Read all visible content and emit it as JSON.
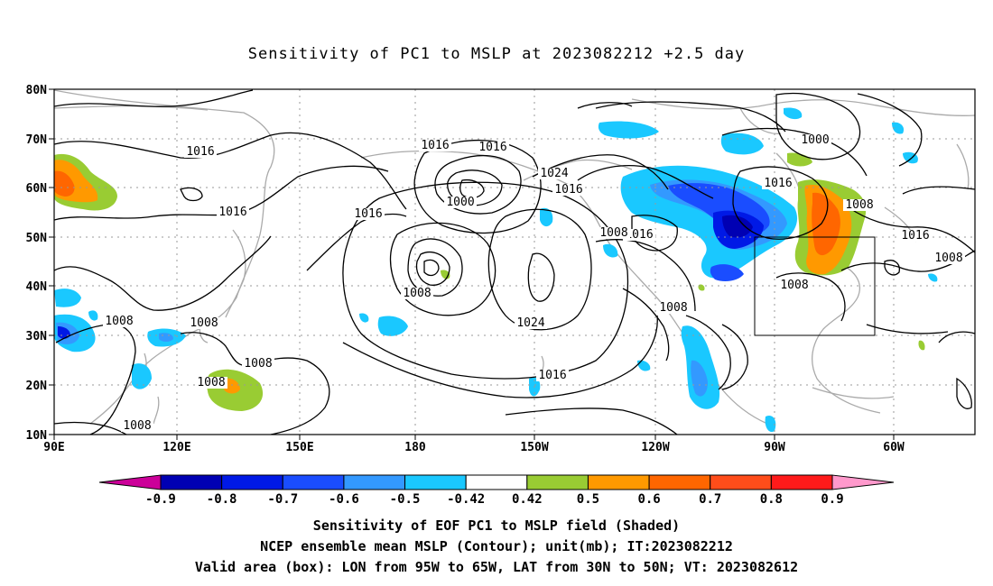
{
  "title": "Sensitivity of PC1 to MSLP at 2023082212 +2.5 day",
  "map": {
    "lat_ticks": [
      "80N",
      "70N",
      "60N",
      "50N",
      "40N",
      "30N",
      "20N",
      "10N"
    ],
    "lon_ticks": [
      "90E",
      "120E",
      "150E",
      "180",
      "150W",
      "120W",
      "90W",
      "60W"
    ],
    "box": {
      "lon_from": "95W",
      "lon_to": "65W",
      "lat_from": "30N",
      "lat_to": "50N"
    },
    "contour_labels": [
      "1016",
      "1016",
      "1016",
      "1008",
      "1016",
      "1000",
      "1016",
      "1024",
      "1016",
      "1000",
      "1016",
      "1008",
      "1016",
      "1016",
      "1008",
      "1008",
      "1008",
      "1024",
      "1008",
      "1008",
      "1008",
      "1008",
      "1016",
      "1008",
      "1008"
    ],
    "colors": {
      "neg_09": "#cc0099",
      "neg_08": "#0000b3",
      "neg_07": "#0019e6",
      "neg_06": "#1a4dff",
      "neg_05": "#3399ff",
      "neg_042": "#1ac8ff",
      "neutral": "#ffffff",
      "pos_042": "#99cc33",
      "pos_05": "#ff9900",
      "pos_06": "#ff6600",
      "pos_07": "#ff4d1a",
      "pos_08": "#ff1a1a",
      "pos_09": "#ff99cc"
    }
  },
  "colorbar": {
    "labels": [
      "-0.9",
      "-0.8",
      "-0.7",
      "-0.6",
      "-0.5",
      "-0.42",
      "0.42",
      "0.5",
      "0.6",
      "0.7",
      "0.8",
      "0.9"
    ],
    "colors": [
      "#cc0099",
      "#0000b3",
      "#0019e6",
      "#1a4dff",
      "#3399ff",
      "#1ac8ff",
      "#ffffff",
      "#99cc33",
      "#ff9900",
      "#ff6600",
      "#ff4d1a",
      "#ff1a1a",
      "#ff99cc"
    ]
  },
  "captions": {
    "line1": "Sensitivity of EOF PC1 to MSLP field (Shaded)",
    "line2": "NCEP ensemble mean MSLP (Contour); unit(mb); IT:2023082212",
    "line3": "Valid area (box): LON from 95W to 65W, LAT from 30N to 50N; VT: 2023082612"
  }
}
